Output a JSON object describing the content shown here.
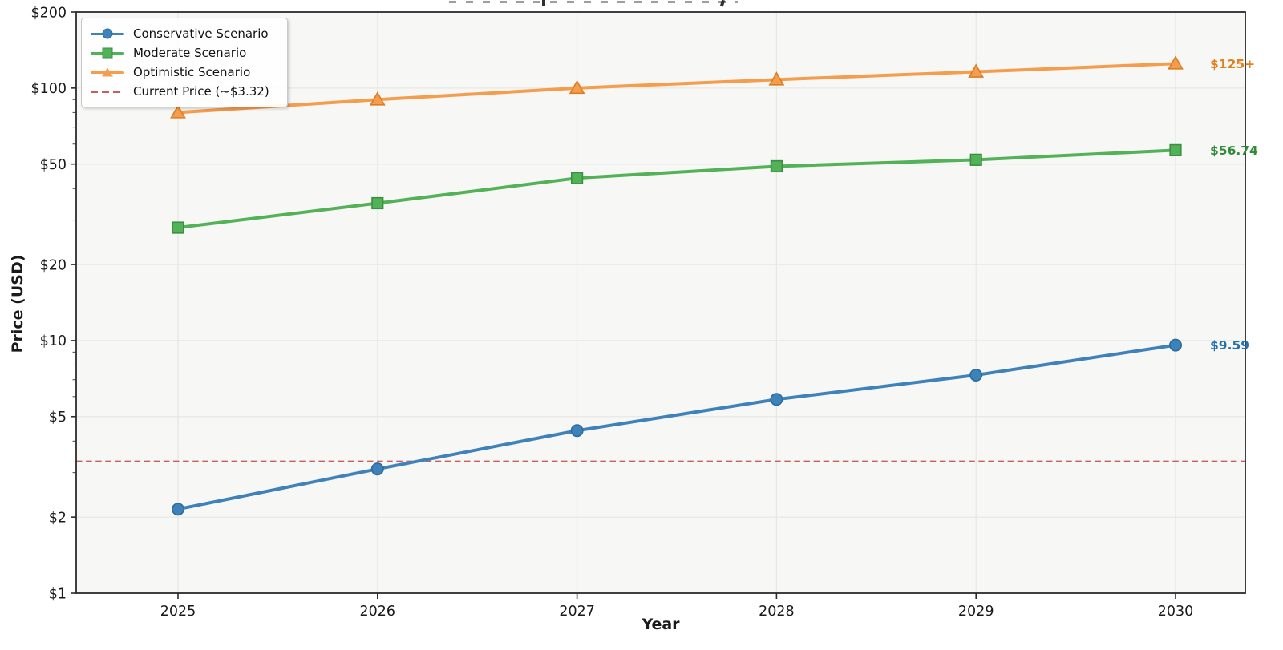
{
  "figure": {
    "note": "chart title is clipped off at the top edge of the screenshot",
    "x_axis_label": "Year",
    "y_axis_label": "Price (USD)"
  },
  "chart_data": {
    "type": "line",
    "x": [
      2025,
      2026,
      2027,
      2028,
      2029,
      2030
    ],
    "x_tick_labels": [
      "2025",
      "2026",
      "2027",
      "2028",
      "2029",
      "2030"
    ],
    "xlabel": "Year",
    "ylabel": "Price (USD)",
    "y_scale": "log",
    "ylim": [
      1,
      200
    ],
    "y_ticks": [
      1,
      2,
      5,
      10,
      20,
      50,
      100,
      200
    ],
    "y_tick_labels": [
      "$1",
      "$2",
      "$5",
      "$10",
      "$20",
      "$50",
      "$100",
      "$200"
    ],
    "y_minor_ticks": [
      3,
      4,
      6,
      7,
      8,
      9,
      30,
      40,
      60,
      70,
      80,
      90
    ],
    "grid": true,
    "legend_position": "upper-left",
    "series": [
      {
        "name": "Conservative Scenario",
        "marker": "circle",
        "color": "#3f82ba",
        "edge_color": "#2b6c9f",
        "values": [
          2.15,
          3.1,
          4.4,
          5.85,
          7.3,
          9.59
        ],
        "end_label": "$9.59",
        "end_label_color": "#2470ad"
      },
      {
        "name": "Moderate Scenario",
        "marker": "square",
        "color": "#53b257",
        "edge_color": "#3a9042",
        "values": [
          28,
          35,
          44,
          49,
          52,
          56.74
        ],
        "end_label": "$56.74",
        "end_label_color": "#2f8b3a"
      },
      {
        "name": "Optimistic Scenario",
        "marker": "triangle",
        "color": "#f59c4d",
        "edge_color": "#d97e24",
        "values": [
          80,
          90,
          100,
          108,
          116,
          125
        ],
        "end_label": "$125+",
        "end_label_color": "#e0811f"
      }
    ],
    "reference_line": {
      "name": "Current Price (~$3.32)",
      "value": 3.32,
      "color": "#c75f5f",
      "style": "dashed"
    },
    "style": {
      "plot_background": "#f7f7f5",
      "grid_color": "#e7e7e4",
      "spine_color": "#2b2b2b",
      "tick_label_color": "#1a1a1a"
    }
  }
}
